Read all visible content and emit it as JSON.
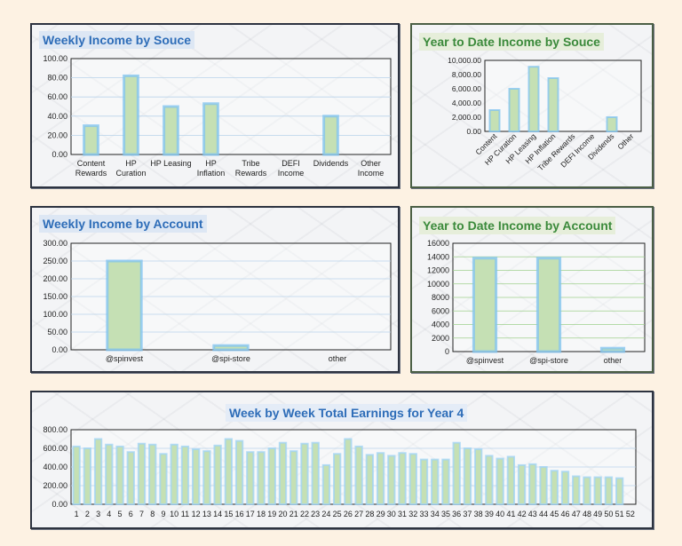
{
  "charts": [
    {
      "type": "bar",
      "title": "Weekly Income by Souce",
      "categories": [
        [
          "Content",
          "Rewards"
        ],
        [
          "HP",
          "Curation"
        ],
        [
          "HP Leasing"
        ],
        [
          "HP",
          "Inflation"
        ],
        [
          "Tribe",
          "Rewards"
        ],
        [
          "DEFI",
          "Income"
        ],
        [
          "Dividends"
        ],
        [
          "Other",
          "Income"
        ]
      ],
      "values": [
        30,
        82,
        50,
        53,
        0,
        0,
        40,
        0
      ],
      "ylim": [
        0,
        100
      ],
      "yticks": [
        "0.00",
        "20.00",
        "40.00",
        "60.00",
        "80.00",
        "100.00"
      ],
      "grid": true,
      "colors": {
        "bar": "#c5e0b4",
        "glow": "#7fc3f0",
        "title": "#2e6db8"
      }
    },
    {
      "type": "bar",
      "title": "Year to Date Income by Souce",
      "categories": [
        "Content",
        "HP Curation",
        "HP Leasing",
        "HP Inflation",
        "Tribe Rewards",
        "DEFI Income",
        "Dividends",
        "Other"
      ],
      "values": [
        3000,
        6000,
        9100,
        7500,
        0,
        0,
        2000,
        0
      ],
      "ylim": [
        0,
        10000
      ],
      "yticks": [
        "0.00",
        "2,000.00",
        "4,000.00",
        "6,000.00",
        "8,000.00",
        "10,000.00"
      ],
      "grid": false,
      "colors": {
        "bar": "#c5e0b4",
        "glow": "#7fc3f0",
        "title": "#3b8a3b"
      }
    },
    {
      "type": "bar",
      "title": "Weekly Income by Account",
      "categories": [
        "@spinvest",
        "@spi-store",
        "other"
      ],
      "values": [
        250,
        12,
        0
      ],
      "ylim": [
        0,
        300
      ],
      "yticks": [
        "0.00",
        "50.00",
        "100.00",
        "150.00",
        "200.00",
        "250.00",
        "300.00"
      ],
      "grid": true,
      "colors": {
        "bar": "#c5e0b4",
        "glow": "#7fc3f0",
        "title": "#2e6db8"
      }
    },
    {
      "type": "bar",
      "title": "Year to Date Income by Account",
      "categories": [
        "@spinvest",
        "@spi-store",
        "other"
      ],
      "values": [
        13800,
        13800,
        500
      ],
      "ylim": [
        0,
        16000
      ],
      "yticks": [
        "0",
        "2000",
        "4000",
        "6000",
        "8000",
        "10000",
        "12000",
        "14000",
        "16000"
      ],
      "grid": true,
      "colors": {
        "bar": "#c5e0b4",
        "glow": "#7fc3f0",
        "title": "#3b8a3b"
      }
    },
    {
      "type": "bar",
      "title": "Week by Week Total Earnings for Year 4",
      "categories": [
        "1",
        "2",
        "3",
        "4",
        "5",
        "6",
        "7",
        "8",
        "9",
        "10",
        "11",
        "12",
        "13",
        "14",
        "15",
        "16",
        "17",
        "18",
        "19",
        "20",
        "21",
        "22",
        "23",
        "24",
        "25",
        "26",
        "27",
        "28",
        "29",
        "30",
        "31",
        "32",
        "33",
        "34",
        "35",
        "36",
        "37",
        "38",
        "39",
        "40",
        "41",
        "42",
        "43",
        "44",
        "45",
        "46",
        "47",
        "48",
        "49",
        "50",
        "51",
        "52"
      ],
      "values": [
        620,
        600,
        700,
        640,
        620,
        560,
        650,
        640,
        540,
        640,
        620,
        590,
        570,
        630,
        700,
        680,
        560,
        560,
        600,
        660,
        570,
        650,
        660,
        420,
        540,
        700,
        620,
        530,
        550,
        520,
        550,
        540,
        480,
        480,
        480,
        660,
        600,
        590,
        520,
        490,
        510,
        420,
        430,
        400,
        360,
        350,
        300,
        290,
        290,
        290,
        280,
        0
      ],
      "ylim": [
        0,
        800
      ],
      "yticks": [
        "0.00",
        "200.00",
        "400.00",
        "600.00",
        "800.00"
      ],
      "grid": true,
      "colors": {
        "bar": "#c5e0b4",
        "glow": "#9fd3f5",
        "title": "#2e6db8"
      }
    }
  ]
}
